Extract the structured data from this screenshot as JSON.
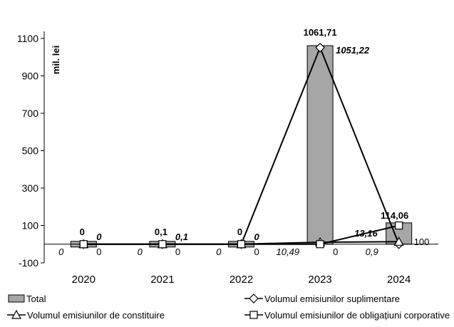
{
  "chart_data": {
    "type": "bar",
    "ylabel": "mil. lei",
    "ylim": [
      -100,
      1100
    ],
    "yticks": [
      -100,
      100,
      300,
      500,
      700,
      900,
      1100
    ],
    "categories": [
      "2020",
      "2021",
      "2022",
      "2023",
      "2024"
    ],
    "series": [
      {
        "name": "Total",
        "kind": "bar",
        "values": [
          0,
          0.1,
          0,
          1061.71,
          114.06
        ],
        "labels": [
          "0",
          "0,1",
          "0",
          "1061,71",
          "114,06"
        ],
        "color": "#a6a6a6"
      },
      {
        "name": "Volumul emisiunilor suplimentare",
        "kind": "line",
        "marker": "diamond",
        "values": [
          0,
          0.1,
          0,
          1051.22,
          0
        ],
        "labels": [
          "0",
          "0,1",
          "0",
          "1051,22",
          ""
        ]
      },
      {
        "name": "Volumul emisiunilor de constituire",
        "kind": "line",
        "marker": "triangle",
        "values": [
          0,
          0,
          0,
          10.49,
          13.16
        ],
        "labels": [
          "0",
          "0",
          "0",
          "10,49",
          "13,16"
        ]
      },
      {
        "name": "Volumul emisiunilor de obligațiuni corporative",
        "kind": "line",
        "marker": "square",
        "values": [
          0,
          0,
          0,
          0,
          100
        ],
        "labels": [
          "0",
          "0",
          "0",
          "0",
          "100"
        ]
      }
    ],
    "extra_labels": [
      "0,9"
    ],
    "legend_position": "bottom",
    "grid": false
  }
}
